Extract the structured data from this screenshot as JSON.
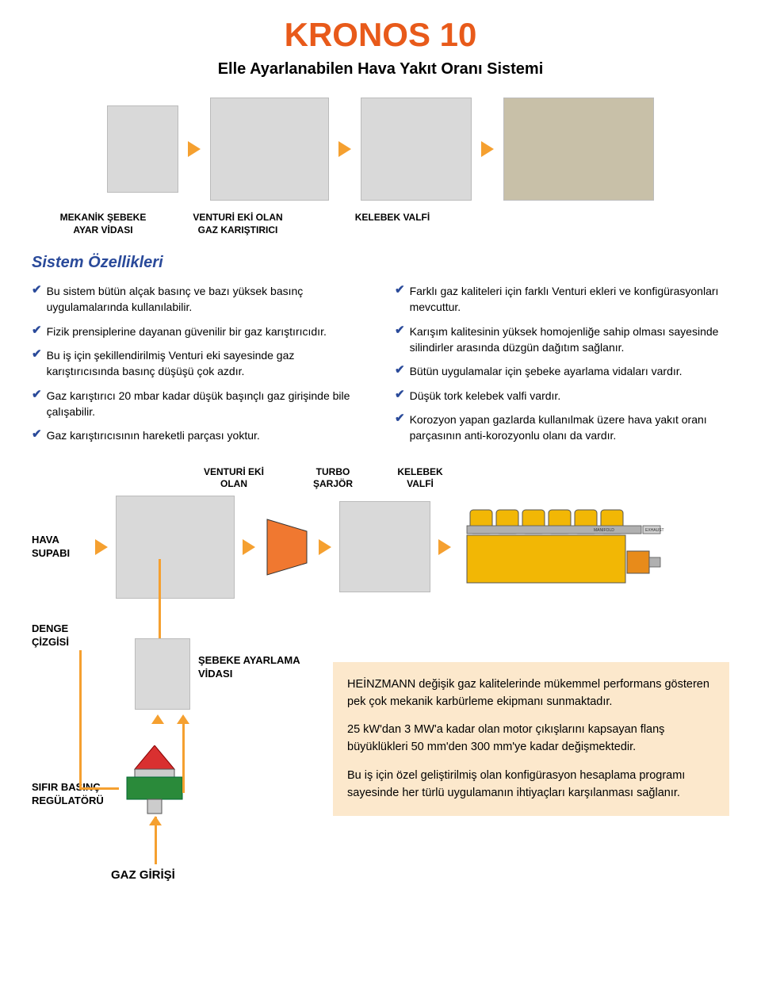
{
  "colors": {
    "title": "#e85a1a",
    "arrow": "#f5a030",
    "section_head": "#2a4a9a",
    "check": "#2a4a9a",
    "info_bg": "#fce8cc",
    "engine_yellow": "#f2b705",
    "engine_orange": "#e88b1a",
    "reg_red": "#d93030",
    "reg_green": "#2a8a3a",
    "turbo_fill": "#f07830",
    "flow_line": "#f5a030"
  },
  "title": "KRONOS 10",
  "subtitle": "Elle Ayarlanabilen Hava Yakıt Oranı Sistemi",
  "top_labels": {
    "l1": "MEKANİK ŞEBEKE\nAYAR VİDASI",
    "l2": "VENTURİ EKİ OLAN\nGAZ KARIŞTIRICI",
    "l3": "KELEBEK VALFİ"
  },
  "section_head": "Sistem Özellikleri",
  "left_bullets": [
    "Bu sistem bütün alçak basınç ve bazı yüksek basınç uygulamalarında kullanılabilir.",
    "Fizik prensiplerine dayanan güvenilir bir gaz karıştırıcıdır.",
    "Bu iş için şekillendirilmiş Venturi eki sayesinde gaz karıştırıcısında basınç düşüşü çok azdır.",
    "Gaz karıştırıcı 20 mbar kadar düşük başınçlı gaz girişinde bile çalışabilir.",
    "Gaz karıştırıcısının hareketli parçası yoktur."
  ],
  "right_bullets": [
    "Farklı gaz kaliteleri için farklı Venturi ekleri ve konfigürasyonları mevcuttur.",
    "Karışım kalitesinin yüksek homojenliğe sahip olması sayesinde silindirler arasında düzgün dağıtım sağlanır.",
    "Bütün uygulamalar için şebeke ayarlama vidaları vardır.",
    "Düşük tork kelebek valfi vardır.",
    "Korozyon yapan gazlarda kullanılmak üzere hava yakıt oranı parçasının anti-korozyonlu olanı da vardır."
  ],
  "mid_labels": {
    "venturi": "VENTURİ EKİ\nOLAN",
    "turbo": "TURBO\nŞARJÖR",
    "kelebek": "KELEBEK\nVALFİ"
  },
  "side_label": "HAVA\nSUPABI",
  "lower_labels": {
    "denge": "DENGE\nÇİZGİSİ",
    "sebeke": "ŞEBEKE AYARLAMA\nVİDASI",
    "sifir": "SIFIR BASINÇ\nREGÜLATÖRÜ",
    "gaz": "GAZ GİRİŞİ"
  },
  "info_paragraphs": [
    "HEİNZMANN değişik gaz kalitelerinde mükemmel performans gösteren pek çok mekanik karbürleme ekipmanı sunmaktadır.",
    "25 kW'dan 3 MW'a kadar olan motor çıkışlarını kapsayan flanş büyüklükleri 50 mm'den 300 mm'ye kadar değişmektedir.",
    "Bu iş için özel geliştirilmiş olan konfigürasyon hesaplama programı sayesinde her türlü uygulamanın ihtiyaçları karşılanması sağlanır."
  ]
}
